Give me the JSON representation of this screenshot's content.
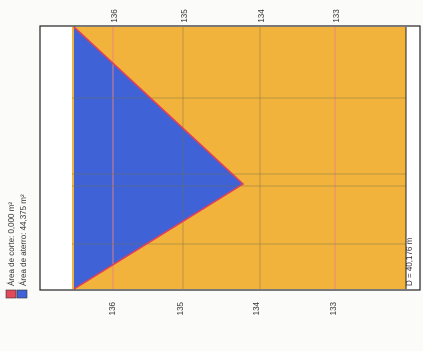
{
  "legend": {
    "corte_label": "Área de corte: 0,000 m²",
    "aterro_label": "Área de aterro: 44,375 m²",
    "corte_color": "#e04a5a",
    "aterro_color": "#3f63d6"
  },
  "top_labels": [
    "136",
    "135",
    "134",
    "133"
  ],
  "bottom_labels": [
    "136",
    "135",
    "134",
    "133"
  ],
  "distance_label": "D = 40,176 m",
  "colors": {
    "fill": "#f2b33c",
    "fill_region": "#3f63d6",
    "outline": "#e0405a",
    "grid_major": "#6f6f4a",
    "grid_minor": "#e8837a"
  }
}
